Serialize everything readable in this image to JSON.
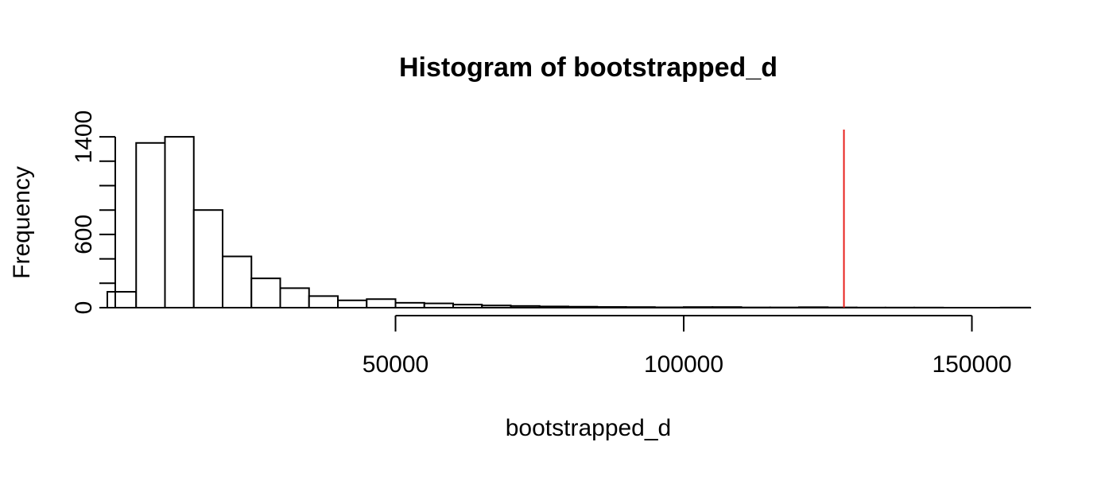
{
  "chart_data": {
    "type": "bar",
    "title": "Histogram of bootstrapped_d",
    "xlabel": "bootstrapped_d",
    "ylabel": "Frequency",
    "bin_width": 5000,
    "bin_start": 0,
    "values": [
      130,
      1350,
      1400,
      800,
      420,
      240,
      160,
      95,
      60,
      70,
      40,
      35,
      25,
      18,
      14,
      10,
      8,
      6,
      5,
      3,
      5,
      5,
      2,
      2,
      4,
      2,
      1,
      1,
      1,
      0,
      0,
      1
    ],
    "xlim": [
      0,
      160000
    ],
    "ylim": [
      0,
      1400
    ],
    "x_ticks": [
      "50000",
      "100000",
      "150000"
    ],
    "x_tick_values": [
      50000,
      100000,
      150000
    ],
    "y_ticks": [
      "0",
      "600",
      "1400"
    ],
    "y_tick_values": [
      0,
      600,
      1400
    ],
    "y_minor_ticks": [
      0,
      200,
      400,
      600,
      800,
      1000,
      1200,
      1400
    ],
    "reference_line": {
      "x": 127800,
      "color": "#e8201b"
    },
    "bar_fill": "#ffffff",
    "bar_stroke": "#000000",
    "grid": false
  }
}
